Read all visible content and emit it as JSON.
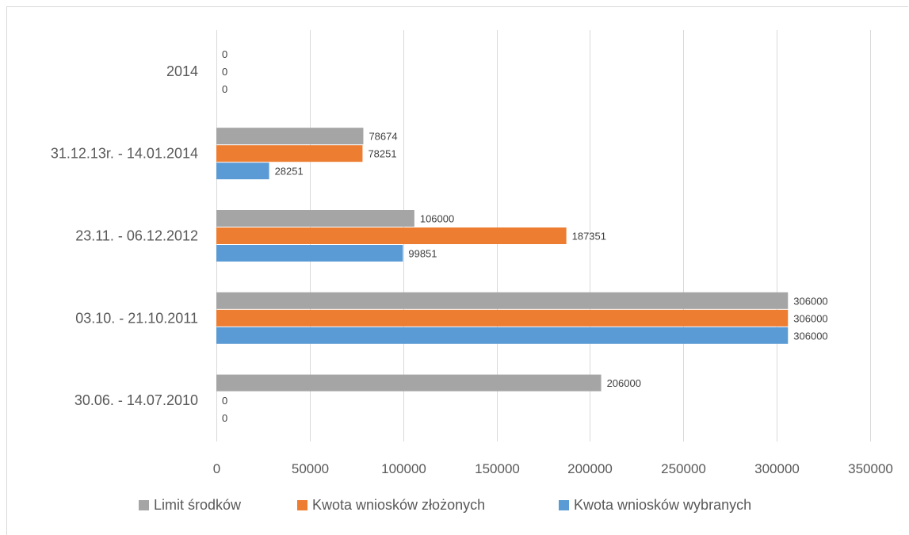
{
  "chart_data": {
    "type": "bar",
    "orientation": "horizontal",
    "categories": [
      "30.06. - 14.07.2010",
      "03.10. - 21.10.2011",
      "23.11. - 06.12.2012",
      "31.12.13r. - 14.01.2014",
      "2014"
    ],
    "series": [
      {
        "name": "Limit środków",
        "color": "#a5a5a5",
        "values": [
          206000,
          306000,
          106000,
          78674,
          0
        ]
      },
      {
        "name": "Kwota wniosków złożonych",
        "color": "#ed7d31",
        "values": [
          0,
          306000,
          187351,
          78251,
          0
        ]
      },
      {
        "name": "Kwota wniosków wybranych",
        "color": "#5b9bd5",
        "values": [
          0,
          306000,
          99851,
          28251,
          0
        ]
      }
    ],
    "xlim": [
      0,
      350000
    ],
    "xticks": [
      0,
      50000,
      100000,
      150000,
      200000,
      250000,
      300000,
      350000
    ],
    "grid": "vertical",
    "legend_position": "bottom",
    "data_labels": true
  }
}
